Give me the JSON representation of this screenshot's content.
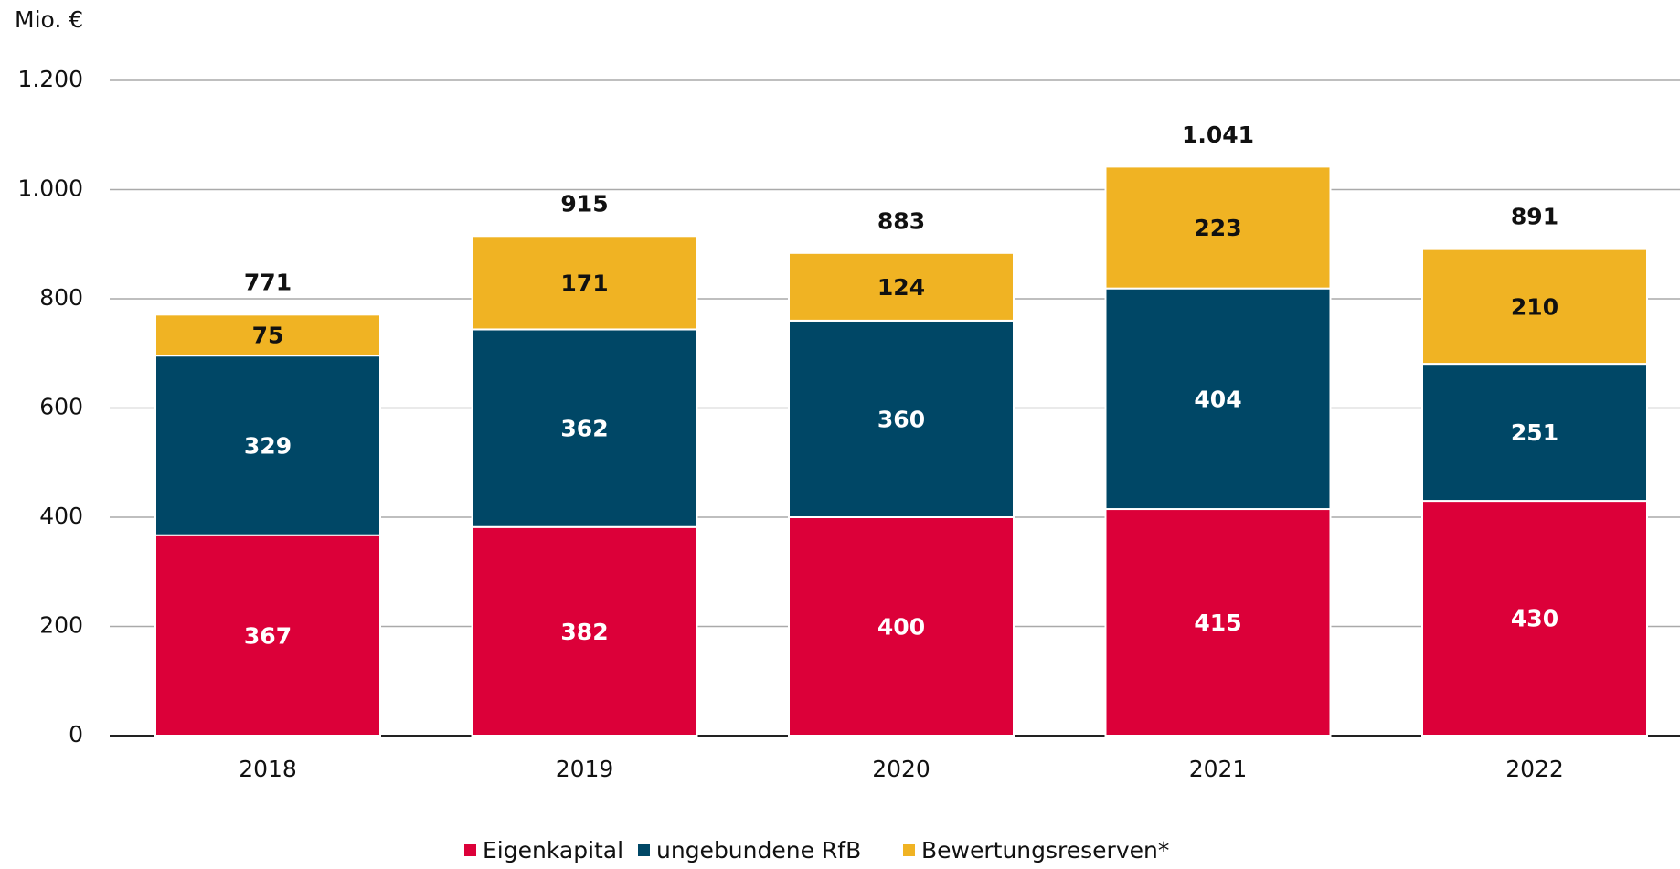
{
  "chart_data": {
    "type": "stacked_bar",
    "y_axis_label": "Mio. €",
    "categories": [
      "2018",
      "2019",
      "2020",
      "2021",
      "2022"
    ],
    "series": [
      {
        "name": "Eigenkapital",
        "color": "#dc0039",
        "values": [
          367,
          382,
          400,
          415,
          430
        ]
      },
      {
        "name": "ungebundene RfB",
        "color": "#004766",
        "values": [
          329,
          362,
          360,
          404,
          251
        ]
      },
      {
        "name": "Bewertungsreserven*",
        "color": "#f0b323",
        "values": [
          75,
          171,
          124,
          223,
          210
        ]
      }
    ],
    "totals": {
      "values": [
        771,
        915,
        883,
        1041,
        891
      ],
      "value_labels": [
        "771",
        "915",
        "883",
        "1.041",
        "891"
      ]
    },
    "ylim": [
      0,
      1200
    ],
    "yticks": [
      0,
      200,
      400,
      600,
      800,
      {
        "value": 1000,
        "label": "1.000"
      },
      {
        "value": 1200,
        "label": "1.200"
      }
    ],
    "grid": true
  }
}
